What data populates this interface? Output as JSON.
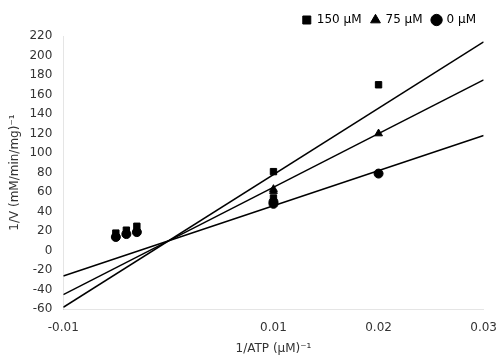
{
  "chart_data": {
    "type": "scatter",
    "xlabel": "1/ATP (μM)⁻¹",
    "ylabel": "1/V (mM/min/mg)⁻¹",
    "xlim": [
      -0.01,
      0.03
    ],
    "ylim": [
      -60,
      220
    ],
    "xticks": [
      -0.01,
      0.01,
      0.02,
      0.03
    ],
    "yticks": [
      -60,
      -40,
      -20,
      0,
      20,
      40,
      60,
      80,
      100,
      120,
      140,
      160,
      180,
      200,
      220
    ],
    "grid": false,
    "legend": "upper right",
    "series": [
      {
        "name": "0 μM",
        "marker": "circle",
        "color": "#000000",
        "x": [
          -0.005,
          -0.004,
          -0.003,
          0.01,
          0.01,
          0.02
        ],
        "values": [
          14,
          17,
          19,
          48,
          50,
          79
        ],
        "fit": {
          "x": [
            -0.01,
            0.03
          ],
          "values": [
            -26,
            118
          ],
          "color": "#000000"
        }
      },
      {
        "name": "75 μM",
        "marker": "triangle",
        "color": "#000000",
        "x": [
          -0.005,
          -0.004,
          -0.003,
          0.01,
          0.01,
          0.02
        ],
        "values": [
          16,
          18,
          22,
          61,
          63,
          120
        ],
        "fit": {
          "x": [
            -0.01,
            0.03
          ],
          "values": [
            -45,
            175
          ],
          "color": "#000000"
        }
      },
      {
        "name": "150 μM",
        "marker": "square",
        "color": "#000000",
        "x": [
          -0.005,
          -0.004,
          -0.003,
          0.01,
          0.01,
          0.02
        ],
        "values": [
          18,
          21,
          25,
          54,
          81,
          170
        ],
        "fit": {
          "x": [
            -0.01,
            0.03
          ],
          "values": [
            -58,
            214
          ],
          "color": "#000000"
        }
      }
    ]
  }
}
